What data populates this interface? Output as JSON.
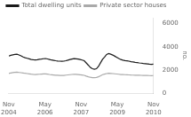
{
  "chart_data": {
    "type": "line",
    "ylabel": "no.",
    "x": [
      0,
      1.014085,
      2.028169,
      3.042254,
      4.056338,
      5.070423,
      6.084507,
      7.098592,
      8.112676,
      9.126761,
      10.140845,
      11.15493,
      12.169014,
      13.183099,
      14.197183,
      15.211268,
      16.225352,
      17.239437,
      18.253521,
      19.267606,
      20.28169,
      21.295775,
      22.309859,
      23.323944,
      24.338028,
      25.352113,
      26.366197,
      27.380282,
      28.394366,
      29.408451,
      30.422535,
      31.43662,
      32.450704,
      33.464789,
      34.478873,
      35.492958,
      36.507042,
      37.521127,
      38.535211,
      39.549296,
      40.56338,
      41.577465,
      42.591549,
      43.605634,
      44.619718,
      45.633803,
      46.647887,
      47.661972,
      48.676056,
      49.690141,
      50.704225,
      51.71831,
      52.732394,
      53.746479,
      54.760563,
      55.774648,
      56.788732,
      57.802817,
      58.816901,
      59.830986,
      60.84507,
      61.859155,
      62.873239,
      63.887324,
      64.901408,
      65.915493,
      66.929577,
      67.943662,
      68.957746,
      69.971831,
      70.985915,
      72
    ],
    "series": [
      {
        "name": "Total dwelling units",
        "color": "#1a1a1a",
        "values": [
          3200,
          3270,
          3310,
          3340,
          3360,
          3300,
          3220,
          3120,
          3060,
          3010,
          2960,
          2910,
          2880,
          2870,
          2890,
          2920,
          2940,
          2970,
          2990,
          2950,
          2910,
          2860,
          2830,
          2800,
          2775,
          2760,
          2748,
          2762,
          2800,
          2850,
          2900,
          2940,
          2980,
          2965,
          2945,
          2900,
          2855,
          2800,
          2610,
          2420,
          2220,
          2110,
          2060,
          2110,
          2310,
          2620,
          2920,
          3120,
          3340,
          3420,
          3360,
          3290,
          3190,
          3090,
          2990,
          2900,
          2850,
          2810,
          2790,
          2760,
          2710,
          2690,
          2660,
          2640,
          2610,
          2590,
          2565,
          2545,
          2525,
          2505,
          2490,
          2505
        ]
      },
      {
        "name": "Private sector houses",
        "color": "#aaaaaa",
        "values": [
          1700,
          1748,
          1775,
          1795,
          1810,
          1790,
          1770,
          1745,
          1715,
          1695,
          1672,
          1645,
          1625,
          1615,
          1625,
          1638,
          1648,
          1658,
          1665,
          1645,
          1618,
          1595,
          1575,
          1555,
          1545,
          1535,
          1528,
          1538,
          1558,
          1578,
          1598,
          1618,
          1635,
          1625,
          1605,
          1585,
          1565,
          1542,
          1475,
          1415,
          1372,
          1345,
          1338,
          1358,
          1418,
          1498,
          1595,
          1645,
          1692,
          1715,
          1705,
          1695,
          1675,
          1655,
          1635,
          1615,
          1608,
          1598,
          1588,
          1578,
          1568,
          1562,
          1557,
          1552,
          1548,
          1543,
          1538,
          1533,
          1528,
          1523,
          1518,
          1522
        ]
      }
    ],
    "xlim": [
      0,
      72
    ],
    "xticks": [
      {
        "value": 0,
        "label": "Nov\n2004"
      },
      {
        "value": 18,
        "label": "May\n2006"
      },
      {
        "value": 36,
        "label": "Nov\n2007"
      },
      {
        "value": 54,
        "label": "May\n2009"
      },
      {
        "value": 72,
        "label": "Nov\n2010"
      }
    ],
    "ylim": [
      0,
      6500
    ],
    "yticks": [
      0,
      2000,
      4000,
      6000
    ],
    "grid": false,
    "legend": "upper left"
  }
}
